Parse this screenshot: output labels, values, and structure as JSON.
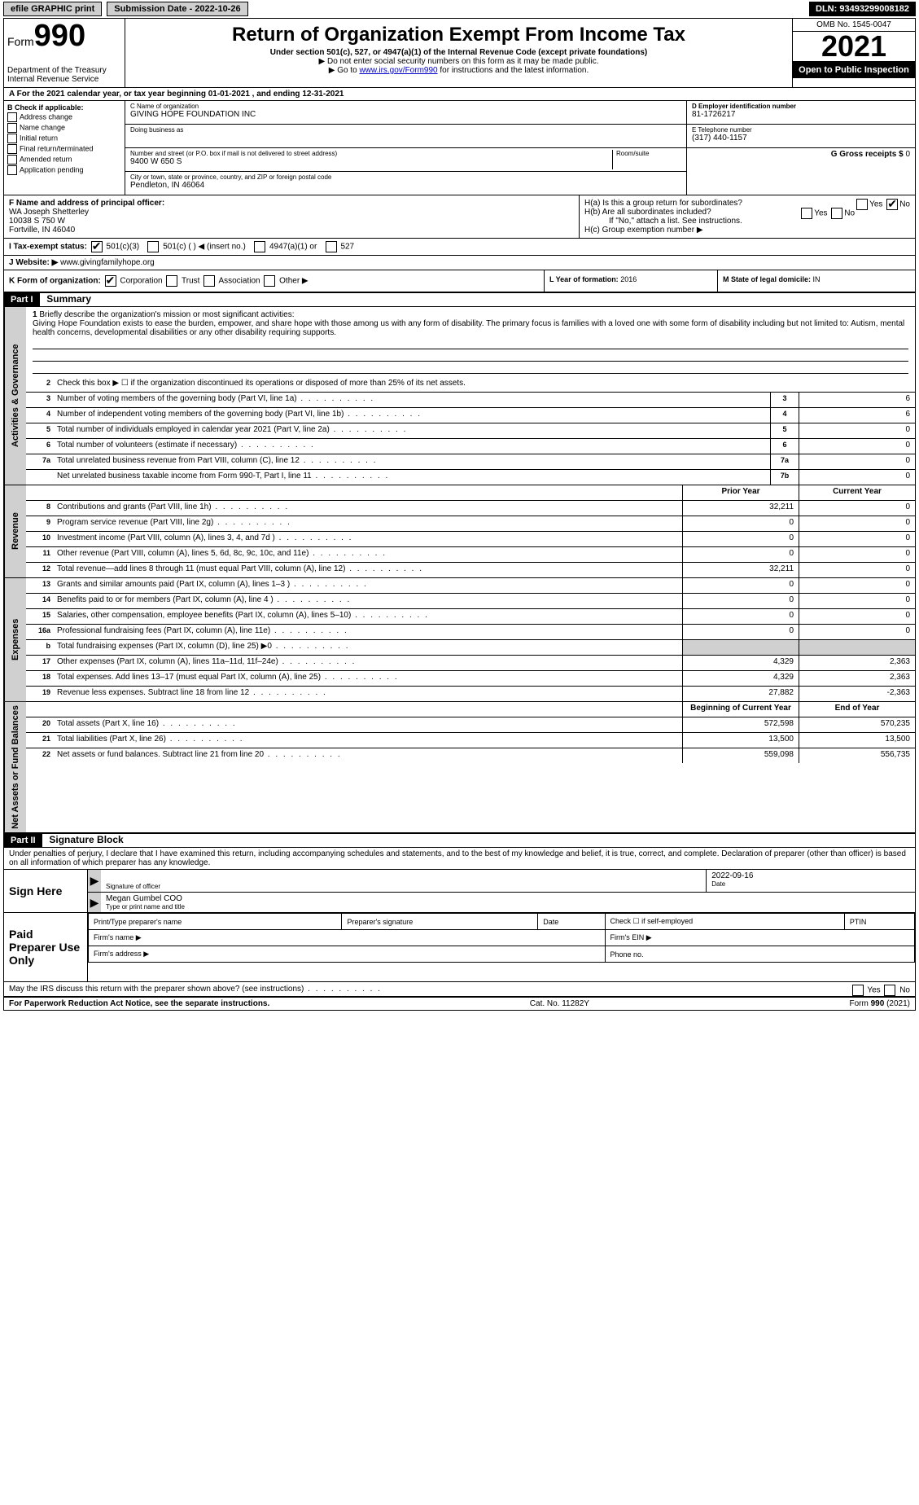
{
  "topbar": {
    "efile": "efile GRAPHIC print",
    "submission_label": "Submission Date - 2022-10-26",
    "dln": "DLN: 93493299008182"
  },
  "header": {
    "form_word": "Form",
    "form_num": "990",
    "dept": "Department of the Treasury",
    "irs": "Internal Revenue Service",
    "title": "Return of Organization Exempt From Income Tax",
    "subtitle": "Under section 501(c), 527, or 4947(a)(1) of the Internal Revenue Code (except private foundations)",
    "note1": "▶ Do not enter social security numbers on this form as it may be made public.",
    "note2_pre": "▶ Go to ",
    "note2_link": "www.irs.gov/Form990",
    "note2_post": " for instructions and the latest information.",
    "omb": "OMB No. 1545-0047",
    "year": "2021",
    "open": "Open to Public Inspection"
  },
  "row_a": "A For the 2021 calendar year, or tax year beginning 01-01-2021    , and ending 12-31-2021",
  "col_b": {
    "label": "B Check if applicable:",
    "opts": [
      "Address change",
      "Name change",
      "Initial return",
      "Final return/terminated",
      "Amended return",
      "Application pending"
    ]
  },
  "col_c": {
    "name_label": "C Name of organization",
    "name": "GIVING HOPE FOUNDATION INC",
    "dba_label": "Doing business as",
    "dba": "",
    "street_label": "Number and street (or P.O. box if mail is not delivered to street address)",
    "room_label": "Room/suite",
    "street": "9400 W 650 S",
    "city_label": "City or town, state or province, country, and ZIP or foreign postal code",
    "city": "Pendleton, IN  46064"
  },
  "col_d": {
    "ein_label": "D Employer identification number",
    "ein": "81-1726217",
    "phone_label": "E Telephone number",
    "phone": "(317) 440-1157",
    "gross_label": "G Gross receipts $",
    "gross": "0"
  },
  "row_f": {
    "label": "F  Name and address of principal officer:",
    "name": "WA Joseph Shetterley",
    "addr1": "10038 S 750 W",
    "addr2": "Fortville, IN  46040"
  },
  "row_h": {
    "ha": "H(a)  Is this a group return for subordinates?",
    "hb": "H(b)  Are all subordinates included?",
    "hb_note": "If \"No,\" attach a list. See instructions.",
    "hc": "H(c)  Group exemption number ▶",
    "yes": "Yes",
    "no": "No"
  },
  "row_i": {
    "label": "I   Tax-exempt status:",
    "opts": [
      "501(c)(3)",
      "501(c) (   ) ◀ (insert no.)",
      "4947(a)(1) or",
      "527"
    ]
  },
  "row_j": {
    "label": "J   Website: ▶",
    "val": "www.givingfamilyhope.org"
  },
  "row_k": {
    "label": "K Form of organization:",
    "opts": [
      "Corporation",
      "Trust",
      "Association",
      "Other ▶"
    ],
    "l_label": "L Year of formation:",
    "l_val": "2016",
    "m_label": "M State of legal domicile:",
    "m_val": "IN"
  },
  "part1": {
    "num": "Part I",
    "title": "Summary",
    "q1_label": "1",
    "q1_text": "Briefly describe the organization's mission or most significant activities:",
    "q1_val": "Giving Hope Foundation exists to ease the burden, empower, and share hope with those among us with any form of disability. The primary focus is families with a loved one with some form of disability including but not limited to: Autism, mental health concerns, developmental disabilities or any other disability requiring supports.",
    "q2_label": "2",
    "q2_text": "Check this box ▶ ☐  if the organization discontinued its operations or disposed of more than 25% of its net assets.",
    "side1": "Activities & Governance",
    "side2": "Revenue",
    "side3": "Expenses",
    "side4": "Net Assets or Fund Balances",
    "col_prior": "Prior Year",
    "col_current": "Current Year",
    "col_begin": "Beginning of Current Year",
    "col_end": "End of Year",
    "lines_gov": [
      {
        "n": "3",
        "t": "Number of voting members of the governing body (Part VI, line 1a)",
        "box": "3",
        "v": "6"
      },
      {
        "n": "4",
        "t": "Number of independent voting members of the governing body (Part VI, line 1b)",
        "box": "4",
        "v": "6"
      },
      {
        "n": "5",
        "t": "Total number of individuals employed in calendar year 2021 (Part V, line 2a)",
        "box": "5",
        "v": "0"
      },
      {
        "n": "6",
        "t": "Total number of volunteers (estimate if necessary)",
        "box": "6",
        "v": "0"
      },
      {
        "n": "7a",
        "t": "Total unrelated business revenue from Part VIII, column (C), line 12",
        "box": "7a",
        "v": "0"
      },
      {
        "n": "",
        "t": "Net unrelated business taxable income from Form 990-T, Part I, line 11",
        "box": "7b",
        "v": "0"
      }
    ],
    "lines_rev": [
      {
        "n": "8",
        "t": "Contributions and grants (Part VIII, line 1h)",
        "p": "32,211",
        "c": "0"
      },
      {
        "n": "9",
        "t": "Program service revenue (Part VIII, line 2g)",
        "p": "0",
        "c": "0"
      },
      {
        "n": "10",
        "t": "Investment income (Part VIII, column (A), lines 3, 4, and 7d )",
        "p": "0",
        "c": "0"
      },
      {
        "n": "11",
        "t": "Other revenue (Part VIII, column (A), lines 5, 6d, 8c, 9c, 10c, and 11e)",
        "p": "0",
        "c": "0"
      },
      {
        "n": "12",
        "t": "Total revenue—add lines 8 through 11 (must equal Part VIII, column (A), line 12)",
        "p": "32,211",
        "c": "0"
      }
    ],
    "lines_exp": [
      {
        "n": "13",
        "t": "Grants and similar amounts paid (Part IX, column (A), lines 1–3 )",
        "p": "0",
        "c": "0"
      },
      {
        "n": "14",
        "t": "Benefits paid to or for members (Part IX, column (A), line 4 )",
        "p": "0",
        "c": "0"
      },
      {
        "n": "15",
        "t": "Salaries, other compensation, employee benefits (Part IX, column (A), lines 5–10)",
        "p": "0",
        "c": "0"
      },
      {
        "n": "16a",
        "t": "Professional fundraising fees (Part IX, column (A), line 11e)",
        "p": "0",
        "c": "0"
      },
      {
        "n": "b",
        "t": "Total fundraising expenses (Part IX, column (D), line 25) ▶0",
        "gray": true
      },
      {
        "n": "17",
        "t": "Other expenses (Part IX, column (A), lines 11a–11d, 11f–24e)",
        "p": "4,329",
        "c": "2,363"
      },
      {
        "n": "18",
        "t": "Total expenses. Add lines 13–17 (must equal Part IX, column (A), line 25)",
        "p": "4,329",
        "c": "2,363"
      },
      {
        "n": "19",
        "t": "Revenue less expenses. Subtract line 18 from line 12",
        "p": "27,882",
        "c": "-2,363"
      }
    ],
    "lines_net": [
      {
        "n": "20",
        "t": "Total assets (Part X, line 16)",
        "p": "572,598",
        "c": "570,235"
      },
      {
        "n": "21",
        "t": "Total liabilities (Part X, line 26)",
        "p": "13,500",
        "c": "13,500"
      },
      {
        "n": "22",
        "t": "Net assets or fund balances. Subtract line 21 from line 20",
        "p": "559,098",
        "c": "556,735"
      }
    ]
  },
  "part2": {
    "num": "Part II",
    "title": "Signature Block",
    "decl": "Under penalties of perjury, I declare that I have examined this return, including accompanying schedules and statements, and to the best of my knowledge and belief, it is true, correct, and complete. Declaration of preparer (other than officer) is based on all information of which preparer has any knowledge.",
    "sign_here": "Sign Here",
    "sig_officer_lbl": "Signature of officer",
    "date_lbl": "Date",
    "date_val": "2022-09-16",
    "name_title": "Megan Gumbel COO",
    "name_lbl": "Type or print name and title",
    "paid": "Paid Preparer Use Only",
    "prep_name_lbl": "Print/Type preparer's name",
    "prep_sig_lbl": "Preparer's signature",
    "prep_date_lbl": "Date",
    "self_emp": "Check ☐ if self-employed",
    "ptin": "PTIN",
    "firm_name": "Firm's name    ▶",
    "firm_ein": "Firm's EIN ▶",
    "firm_addr": "Firm's address ▶",
    "phone": "Phone no."
  },
  "footer": {
    "irs_discuss": "May the IRS discuss this return with the preparer shown above? (see instructions)",
    "paperwork": "For Paperwork Reduction Act Notice, see the separate instructions.",
    "cat": "Cat. No. 11282Y",
    "form": "Form 990 (2021)"
  }
}
